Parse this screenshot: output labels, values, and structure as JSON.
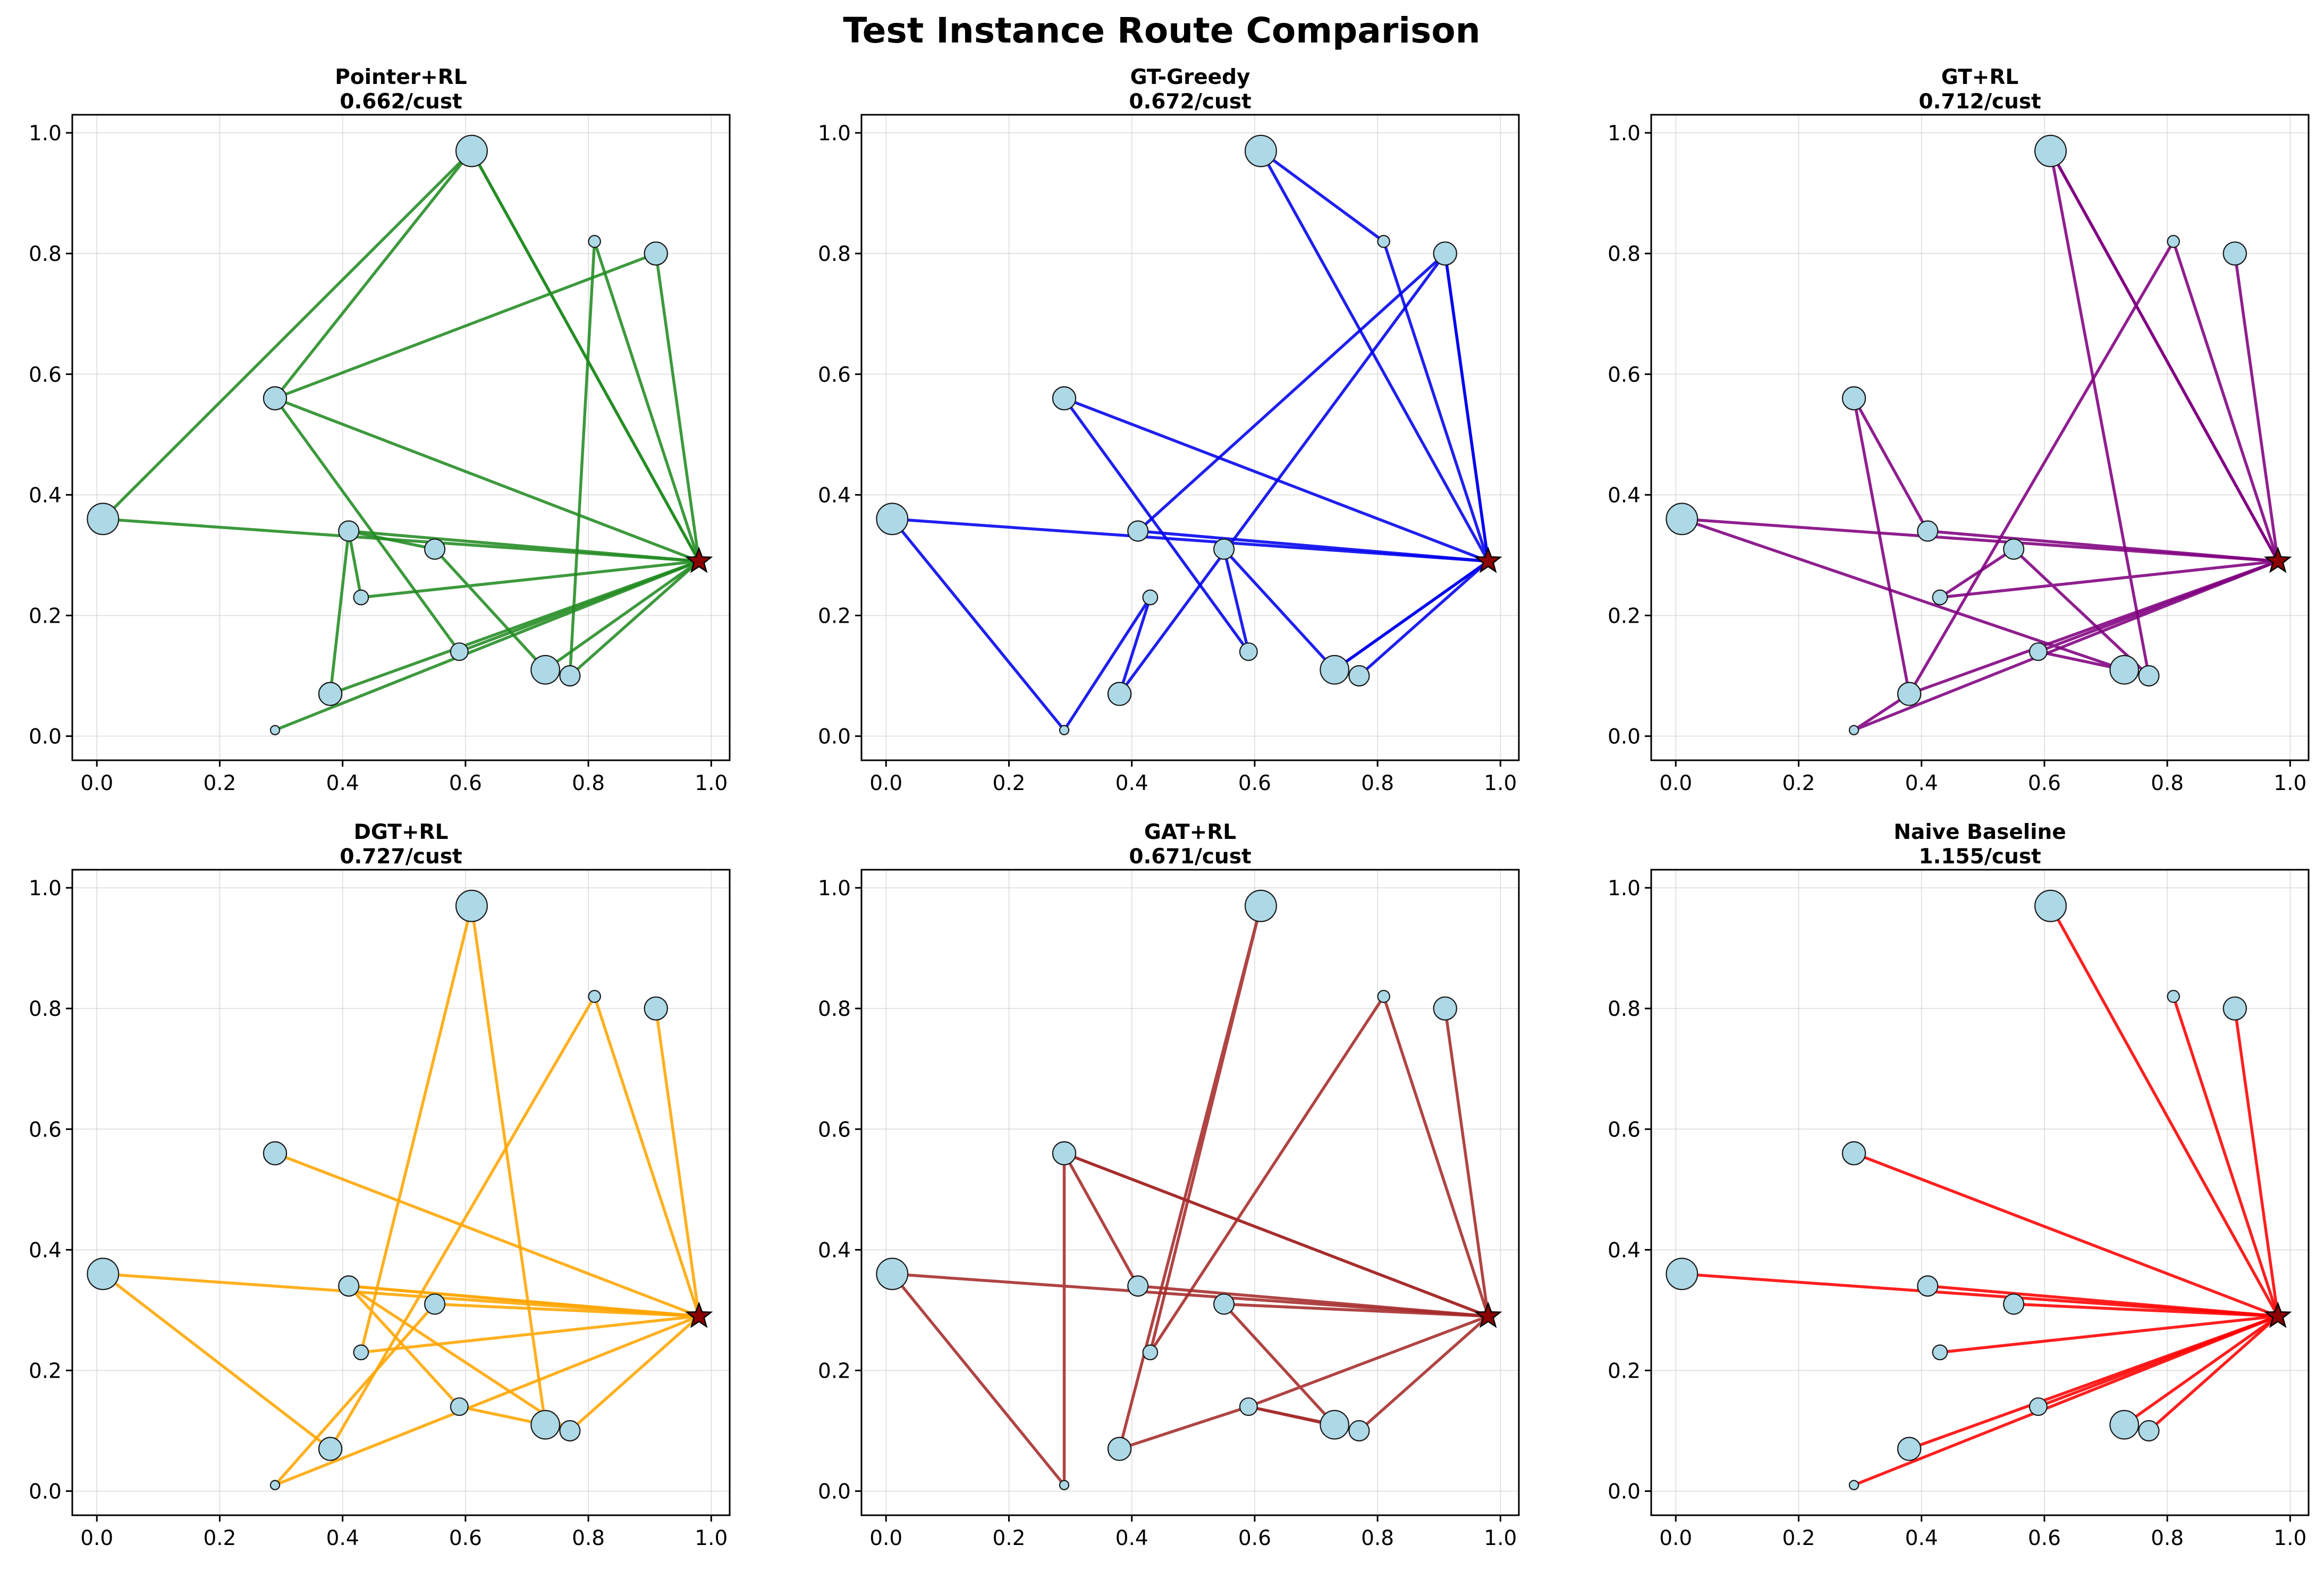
{
  "figure": {
    "title": "Test Instance Route Comparison"
  },
  "chart_data": {
    "type": "scatter",
    "xlim": [
      -0.04,
      1.03
    ],
    "ylim": [
      -0.04,
      1.03
    ],
    "ticks": [
      0.0,
      0.2,
      0.4,
      0.6,
      0.8,
      1.0
    ],
    "tick_labels": [
      "0.0",
      "0.2",
      "0.4",
      "0.6",
      "0.8",
      "1.0"
    ],
    "grid": true,
    "depot": {
      "x": 0.98,
      "y": 0.29
    },
    "customers": [
      {
        "x": 0.61,
        "y": 0.97,
        "demand": 9
      },
      {
        "x": 0.81,
        "y": 0.82,
        "demand": 2
      },
      {
        "x": 0.91,
        "y": 0.8,
        "demand": 6
      },
      {
        "x": 0.29,
        "y": 0.56,
        "demand": 6
      },
      {
        "x": 0.01,
        "y": 0.36,
        "demand": 9
      },
      {
        "x": 0.41,
        "y": 0.34,
        "demand": 5
      },
      {
        "x": 0.55,
        "y": 0.31,
        "demand": 5
      },
      {
        "x": 0.43,
        "y": 0.23,
        "demand": 3
      },
      {
        "x": 0.59,
        "y": 0.14,
        "demand": 4
      },
      {
        "x": 0.73,
        "y": 0.11,
        "demand": 8
      },
      {
        "x": 0.77,
        "y": 0.1,
        "demand": 5
      },
      {
        "x": 0.38,
        "y": 0.07,
        "demand": 6
      },
      {
        "x": 0.29,
        "y": 0.01,
        "demand": 1
      }
    ],
    "node_color": "#add8e6",
    "depot_color": "#8b0000",
    "panels": [
      {
        "name": "Pointer+RL",
        "score": "0.662/cust",
        "color": "#228b22",
        "routes": [
          [
            0,
            0.61,
            0.97,
            0.29,
            0.56,
            0.91,
            0.8,
            0
          ],
          [
            0,
            0.77,
            0.1,
            0.81,
            0.82,
            0
          ],
          [
            0,
            0.43,
            0.23,
            0.41,
            0.34,
            0.55,
            0.31,
            0.73,
            0.11,
            0
          ],
          [
            0,
            0.29,
            0.01,
            0
          ],
          [
            0,
            0.38,
            0.07,
            0.41,
            0.34,
            0
          ],
          [
            0,
            0.01,
            0.36,
            0.61,
            0.97,
            0
          ],
          [
            0,
            0.59,
            0.14,
            0.29,
            0.56,
            0
          ]
        ]
      },
      {
        "name": "GT-Greedy",
        "score": "0.672/cust",
        "color": "#0000ee",
        "routes": [
          [
            0,
            0.81,
            0.82,
            0.61,
            0.97,
            0
          ],
          [
            0,
            0.91,
            0.8,
            0.41,
            0.34,
            0
          ],
          [
            0,
            0.73,
            0.11,
            0.55,
            0.31,
            0.59,
            0.14,
            0.29,
            0.56,
            0
          ],
          [
            0,
            0.01,
            0.36,
            0.29,
            0.01,
            0.43,
            0.23,
            0.38,
            0.07,
            0.91,
            0.8,
            0
          ],
          [
            0,
            0.77,
            0.1,
            0.73,
            0.11,
            0
          ]
        ]
      },
      {
        "name": "GT+RL",
        "score": "0.712/cust",
        "color": "#800080",
        "routes": [
          [
            0,
            0.61,
            0.97,
            0.77,
            0.1,
            0.55,
            0.31,
            0.43,
            0.23,
            0
          ],
          [
            0,
            0.91,
            0.8,
            0
          ],
          [
            0,
            0.01,
            0.36,
            0.73,
            0.11,
            0.59,
            0.14,
            0
          ],
          [
            0,
            0.81,
            0.82,
            0.38,
            0.07,
            0
          ],
          [
            0,
            0.41,
            0.34,
            0.29,
            0.56,
            0.38,
            0.07,
            0.29,
            0.01,
            0
          ],
          [
            0,
            0.61,
            0.97,
            0
          ]
        ]
      },
      {
        "name": "DGT+RL",
        "score": "0.727/cust",
        "color": "#ffa500",
        "routes": [
          [
            0,
            0.91,
            0.8,
            0
          ],
          [
            0,
            0.81,
            0.82,
            0.38,
            0.07,
            0.01,
            0.36,
            0
          ],
          [
            0,
            0.29,
            0.56,
            0
          ],
          [
            0,
            0.41,
            0.34,
            0.59,
            0.14,
            0.73,
            0.11,
            0.61,
            0.97,
            0.43,
            0.23,
            0
          ],
          [
            0,
            0.55,
            0.31,
            0.29,
            0.01,
            0
          ],
          [
            0,
            0.77,
            0.1,
            0.41,
            0.34,
            0
          ]
        ]
      },
      {
        "name": "GAT+RL",
        "score": "0.671/cust",
        "color": "#a52a2a",
        "routes": [
          [
            0,
            0.91,
            0.8,
            0
          ],
          [
            0,
            0.81,
            0.82,
            0.43,
            0.23,
            0.61,
            0.97,
            0.38,
            0.07,
            0.59,
            0.14,
            0.77,
            0.1,
            0
          ],
          [
            0,
            0.55,
            0.31,
            0.73,
            0.11,
            0.59,
            0.14,
            0
          ],
          [
            0,
            0.29,
            0.56,
            0.29,
            0.01,
            0.01,
            0.36,
            0
          ],
          [
            0,
            0.41,
            0.34,
            0.29,
            0.56,
            0
          ]
        ]
      },
      {
        "name": "Naive Baseline",
        "score": "1.155/cust",
        "color": "#ff0000",
        "routes": [
          [
            0,
            0.61,
            0.97,
            0
          ],
          [
            0,
            0.81,
            0.82,
            0
          ],
          [
            0,
            0.91,
            0.8,
            0
          ],
          [
            0,
            0.29,
            0.56,
            0
          ],
          [
            0,
            0.01,
            0.36,
            0
          ],
          [
            0,
            0.41,
            0.34,
            0
          ],
          [
            0,
            0.55,
            0.31,
            0
          ],
          [
            0,
            0.43,
            0.23,
            0
          ],
          [
            0,
            0.59,
            0.14,
            0
          ],
          [
            0,
            0.73,
            0.11,
            0
          ],
          [
            0,
            0.77,
            0.1,
            0
          ],
          [
            0,
            0.38,
            0.07,
            0
          ],
          [
            0,
            0.29,
            0.01,
            0
          ]
        ]
      }
    ]
  }
}
